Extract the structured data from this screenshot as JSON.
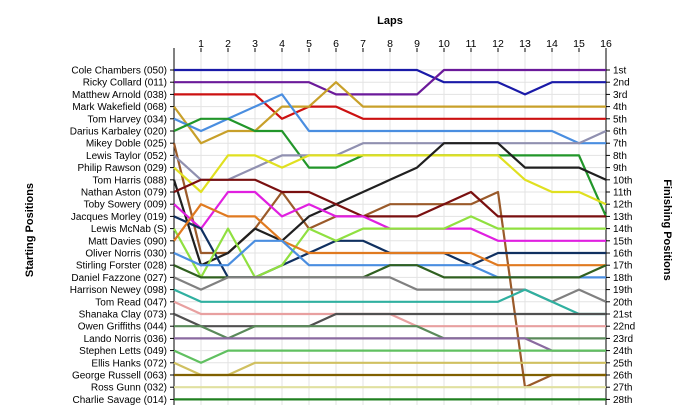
{
  "chart_data": {
    "type": "line",
    "title": "Laps",
    "xlabel": "Laps",
    "ylabel_left": "Starting Positions",
    "ylabel_right": "Finishing Positions",
    "laps": [
      1,
      2,
      3,
      4,
      5,
      6,
      7,
      8,
      9,
      10,
      11,
      12,
      13,
      14,
      15,
      16
    ],
    "positions": 28,
    "finishing_labels": [
      "1st",
      "2nd",
      "3rd",
      "4th",
      "5th",
      "6th",
      "7th",
      "8th",
      "9th",
      "10th",
      "11th",
      "12th",
      "13th",
      "14th",
      "15th",
      "16th",
      "17th",
      "18th",
      "19th",
      "20th",
      "21st",
      "22nd",
      "23rd",
      "24th",
      "25th",
      "26th",
      "27th",
      "28th"
    ],
    "grid": true,
    "series": [
      {
        "name": "Cole Chambers (050)",
        "color": "#1a1aa8",
        "values": [
          1,
          1,
          1,
          1,
          1,
          1,
          1,
          1,
          1,
          1,
          2,
          2,
          2,
          3,
          2,
          2,
          2
        ]
      },
      {
        "name": "Ricky Collard (011)",
        "color": "#6b1a9a",
        "values": [
          2,
          2,
          2,
          2,
          2,
          2,
          3,
          3,
          3,
          3,
          1,
          1,
          1,
          1,
          1,
          1,
          1
        ]
      },
      {
        "name": "Matthew Arnold (038)",
        "color": "#cc1111",
        "values": [
          3,
          3,
          3,
          3,
          5,
          4,
          4,
          5,
          5,
          5,
          5,
          5,
          5,
          5,
          5,
          5,
          5
        ]
      },
      {
        "name": "Mark Wakefield (068)",
        "color": "#c8a02a",
        "values": [
          4,
          7,
          6,
          6,
          4,
          4,
          2,
          4,
          4,
          4,
          4,
          4,
          4,
          4,
          4,
          4,
          4
        ]
      },
      {
        "name": "Tom Harvey (034)",
        "color": "#4a8ee0",
        "values": [
          5,
          6,
          5,
          4,
          3,
          6,
          6,
          6,
          6,
          6,
          6,
          6,
          6,
          6,
          6,
          7,
          7
        ]
      },
      {
        "name": "Darius Karbaley (020)",
        "color": "#22962a",
        "values": [
          6,
          5,
          5,
          6,
          6,
          9,
          9,
          8,
          8,
          8,
          8,
          8,
          8,
          8,
          8,
          8,
          13
        ]
      },
      {
        "name": "Mikey Doble (025)",
        "color": "#9a5a2a",
        "values": [
          7,
          16,
          16,
          14,
          11,
          14,
          13,
          13,
          12,
          12,
          12,
          12,
          11,
          27,
          26,
          26,
          26
        ]
      },
      {
        "name": "Lewis Taylor (052)",
        "color": "#9090b0",
        "values": [
          8,
          10,
          10,
          9,
          8,
          8,
          8,
          7,
          7,
          7,
          7,
          7,
          7,
          7,
          7,
          7,
          6
        ]
      },
      {
        "name": "Philip Rawson (029)",
        "color": "#e0e020",
        "values": [
          9,
          11,
          8,
          8,
          9,
          8,
          8,
          8,
          8,
          8,
          8,
          8,
          8,
          10,
          11,
          11,
          12
        ]
      },
      {
        "name": "Tom Harris (088)",
        "color": "#202020",
        "values": [
          10,
          17,
          16,
          14,
          15,
          13,
          12,
          11,
          10,
          9,
          7,
          7,
          7,
          9,
          9,
          9,
          10
        ]
      },
      {
        "name": "Nathan Aston (079)",
        "color": "#7a1010",
        "values": [
          11,
          10,
          10,
          10,
          11,
          11,
          12,
          13,
          13,
          13,
          12,
          11,
          13,
          13,
          13,
          13,
          13
        ]
      },
      {
        "name": "Toby Sowery (009)",
        "color": "#e020e0",
        "values": [
          12,
          14,
          11,
          11,
          13,
          12,
          13,
          13,
          14,
          14,
          14,
          14,
          15,
          15,
          15,
          15,
          15
        ]
      },
      {
        "name": "Jacques Morley (019)",
        "color": "#103060",
        "values": [
          13,
          14,
          18,
          18,
          17,
          16,
          15,
          15,
          16,
          16,
          16,
          17,
          16,
          16,
          16,
          16,
          16
        ]
      },
      {
        "name": "Lewis McNab (S)",
        "color": "#90e040",
        "values": [
          14,
          18,
          14,
          18,
          17,
          14,
          15,
          14,
          14,
          14,
          14,
          13,
          14,
          14,
          14,
          14,
          14
        ]
      },
      {
        "name": "Matt Davies (090)",
        "color": "#e07a20",
        "values": [
          15,
          12,
          13,
          13,
          15,
          16,
          16,
          16,
          16,
          16,
          16,
          16,
          17,
          17,
          17,
          17,
          17
        ]
      },
      {
        "name": "Oliver Norris (030)",
        "color": "#4a8ee0",
        "values": [
          16,
          17,
          17,
          15,
          15,
          17,
          17,
          17,
          17,
          17,
          17,
          17,
          18,
          18,
          18,
          18,
          18
        ]
      },
      {
        "name": "Stirling Forster (028)",
        "color": "#306020",
        "values": [
          17,
          18,
          18,
          18,
          18,
          18,
          18,
          18,
          17,
          17,
          18,
          18,
          18,
          18,
          18,
          18,
          17
        ]
      },
      {
        "name": "Daniel Fazzone (027)",
        "color": "#808080",
        "values": [
          18,
          19,
          18,
          18,
          18,
          18,
          18,
          18,
          18,
          19,
          19,
          19,
          19,
          19,
          20,
          19,
          20
        ]
      },
      {
        "name": "Harrison Newey (098)",
        "color": "#30b0a0",
        "values": [
          19,
          20,
          20,
          20,
          20,
          20,
          20,
          20,
          20,
          20,
          20,
          20,
          20,
          19,
          20,
          21,
          21
        ]
      },
      {
        "name": "Tom Read (047)",
        "color": "#e8a0a0",
        "values": [
          20,
          21,
          21,
          21,
          21,
          21,
          21,
          21,
          21,
          22,
          22,
          22,
          22,
          22,
          22,
          22,
          22
        ]
      },
      {
        "name": "Shanaka Clay (073)",
        "color": "#505050",
        "values": [
          21,
          22,
          22,
          22,
          22,
          22,
          21,
          21,
          21,
          21,
          21,
          21,
          21,
          21,
          21,
          21,
          21
        ]
      },
      {
        "name": "Owen Griffiths (044)",
        "color": "#5a8a5a",
        "values": [
          22,
          22,
          23,
          22,
          22,
          22,
          22,
          22,
          22,
          22,
          23,
          23,
          23,
          23,
          23,
          23,
          23
        ]
      },
      {
        "name": "Lando Norris (036)",
        "color": "#8a6aa0",
        "values": [
          23,
          23,
          23,
          23,
          23,
          23,
          23,
          23,
          23,
          23,
          23,
          23,
          23,
          23,
          24,
          24,
          24
        ]
      },
      {
        "name": "Stephen Letts (049)",
        "color": "#60c060",
        "values": [
          24,
          25,
          24,
          24,
          24,
          24,
          24,
          24,
          24,
          24,
          24,
          24,
          24,
          24,
          24,
          24,
          24
        ]
      },
      {
        "name": "Ellis Hanks (072)",
        "color": "#d0c060",
        "values": [
          25,
          26,
          26,
          25,
          25,
          25,
          25,
          25,
          25,
          25,
          25,
          25,
          25,
          25,
          25,
          25,
          25
        ]
      },
      {
        "name": "George Russell (063)",
        "color": "#806000",
        "values": [
          26,
          26,
          26,
          26,
          26,
          26,
          26,
          26,
          26,
          26,
          26,
          26,
          26,
          26,
          26,
          26,
          26
        ]
      },
      {
        "name": "Ross Gunn (032)",
        "color": "#e0e0a0",
        "values": [
          27,
          27,
          27,
          27,
          27,
          27,
          27,
          27,
          27,
          27,
          27,
          27,
          27,
          27,
          27,
          27,
          27
        ]
      },
      {
        "name": "Charlie Savage (014)",
        "color": "#208020",
        "values": [
          28,
          28,
          28,
          28,
          28,
          28,
          28,
          28,
          28,
          28,
          28,
          28,
          28,
          28,
          28,
          28,
          28
        ]
      }
    ]
  }
}
